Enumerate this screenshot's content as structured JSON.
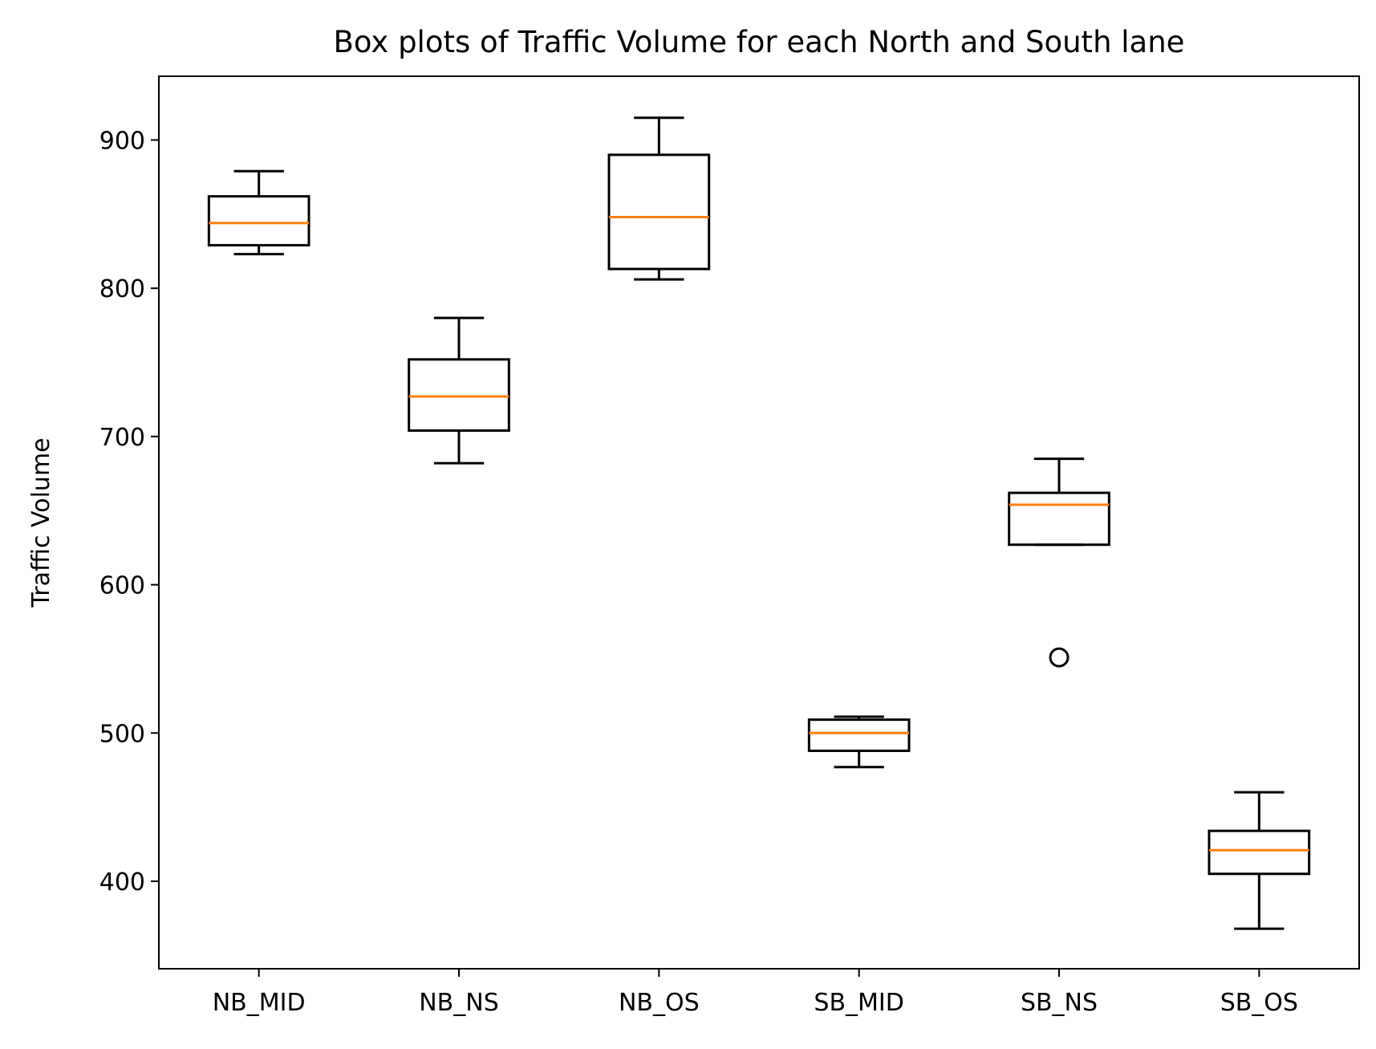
{
  "chart_data": {
    "type": "box",
    "title": "Box plots of Traffic Volume for each North and South lane",
    "xlabel": "",
    "ylabel": "Traffic Volume",
    "ylim": [
      341,
      943
    ],
    "yticks": [
      400,
      500,
      600,
      700,
      800,
      900
    ],
    "grid": false,
    "categories": [
      "NB_MID",
      "NB_NS",
      "NB_OS",
      "SB_MID",
      "SB_NS",
      "SB_OS"
    ],
    "boxes": [
      {
        "label": "NB_MID",
        "whisker_low": 823,
        "q1": 829,
        "median": 844,
        "q3": 862,
        "whisker_high": 879,
        "outliers": []
      },
      {
        "label": "NB_NS",
        "whisker_low": 682,
        "q1": 704,
        "median": 727,
        "q3": 752,
        "whisker_high": 780,
        "outliers": []
      },
      {
        "label": "NB_OS",
        "whisker_low": 806,
        "q1": 813,
        "median": 848,
        "q3": 890,
        "whisker_high": 915,
        "outliers": []
      },
      {
        "label": "SB_MID",
        "whisker_low": 477,
        "q1": 488,
        "median": 500,
        "q3": 509,
        "whisker_high": 511,
        "outliers": []
      },
      {
        "label": "SB_NS",
        "whisker_low": 627,
        "q1": 627,
        "median": 654,
        "q3": 662,
        "whisker_high": 685,
        "outliers": [
          551
        ]
      },
      {
        "label": "SB_OS",
        "whisker_low": 368,
        "q1": 405,
        "median": 421,
        "q3": 434,
        "whisker_high": 460,
        "outliers": []
      }
    ],
    "colors": {
      "box": "#000000",
      "median": "#ff7f0e",
      "outlier": "#000000",
      "background": "#ffffff"
    }
  }
}
